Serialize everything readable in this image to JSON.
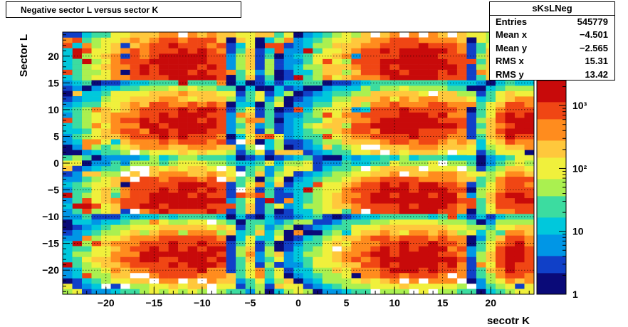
{
  "title": "Negative sector L versus sector K",
  "stats": {
    "name": "sKsLNeg",
    "rows": [
      {
        "label": "Entries",
        "value": "545779"
      },
      {
        "label": "Mean x",
        "value": "−4.501"
      },
      {
        "label": "Mean y",
        "value": "−2.565"
      },
      {
        "label": "RMS x",
        "value": "15.31"
      },
      {
        "label": "RMS y",
        "value": "13.42"
      }
    ]
  },
  "chart_data": {
    "type": "heatmap",
    "title": "Negative sector L versus sector K",
    "xlabel": "secotr K",
    "ylabel": "Sector L",
    "xlim": [
      -24.5,
      24.5
    ],
    "ylim": [
      -24.5,
      24.5
    ],
    "x_ticks": [
      -20,
      -15,
      -10,
      -5,
      0,
      5,
      10,
      15,
      20
    ],
    "y_ticks": [
      -20,
      -15,
      -10,
      -5,
      0,
      5,
      10,
      15,
      20
    ],
    "x_tick_labels": [
      "−20",
      "−15",
      "−10",
      "−5",
      "0",
      "5",
      "10",
      "15",
      "20"
    ],
    "y_tick_labels": [
      "−20",
      "−15",
      "−10",
      "−5",
      "0",
      "5",
      "10",
      "15",
      "20"
    ],
    "grid": true,
    "z_scale": "log",
    "z_range": [
      1,
      2500
    ],
    "z_tick_labels": [
      "1",
      "10",
      "10²",
      "10³"
    ],
    "z_tick_values": [
      1,
      10,
      100,
      1000
    ],
    "palette": [
      "#0a0a78",
      "#1040c8",
      "#0096e6",
      "#00c8dc",
      "#3cdca0",
      "#aaf050",
      "#f0f03c",
      "#ffc83c",
      "#ff8c1e",
      "#f04614",
      "#c80a0a"
    ],
    "bin_width": 1,
    "blob_columns_k": [
      -23,
      -12,
      -2,
      1,
      12,
      23
    ],
    "blob_rows_l": [
      18.5,
      7.5,
      -6.5,
      -17.5
    ],
    "blob_width_k": [
      3,
      8,
      3,
      3,
      8,
      3
    ],
    "blob_height_l": [
      6,
      5,
      5,
      5
    ],
    "peak_level": 2000,
    "outer_columns_k": [
      -23,
      23
    ],
    "outer_level_scale": 1
  }
}
